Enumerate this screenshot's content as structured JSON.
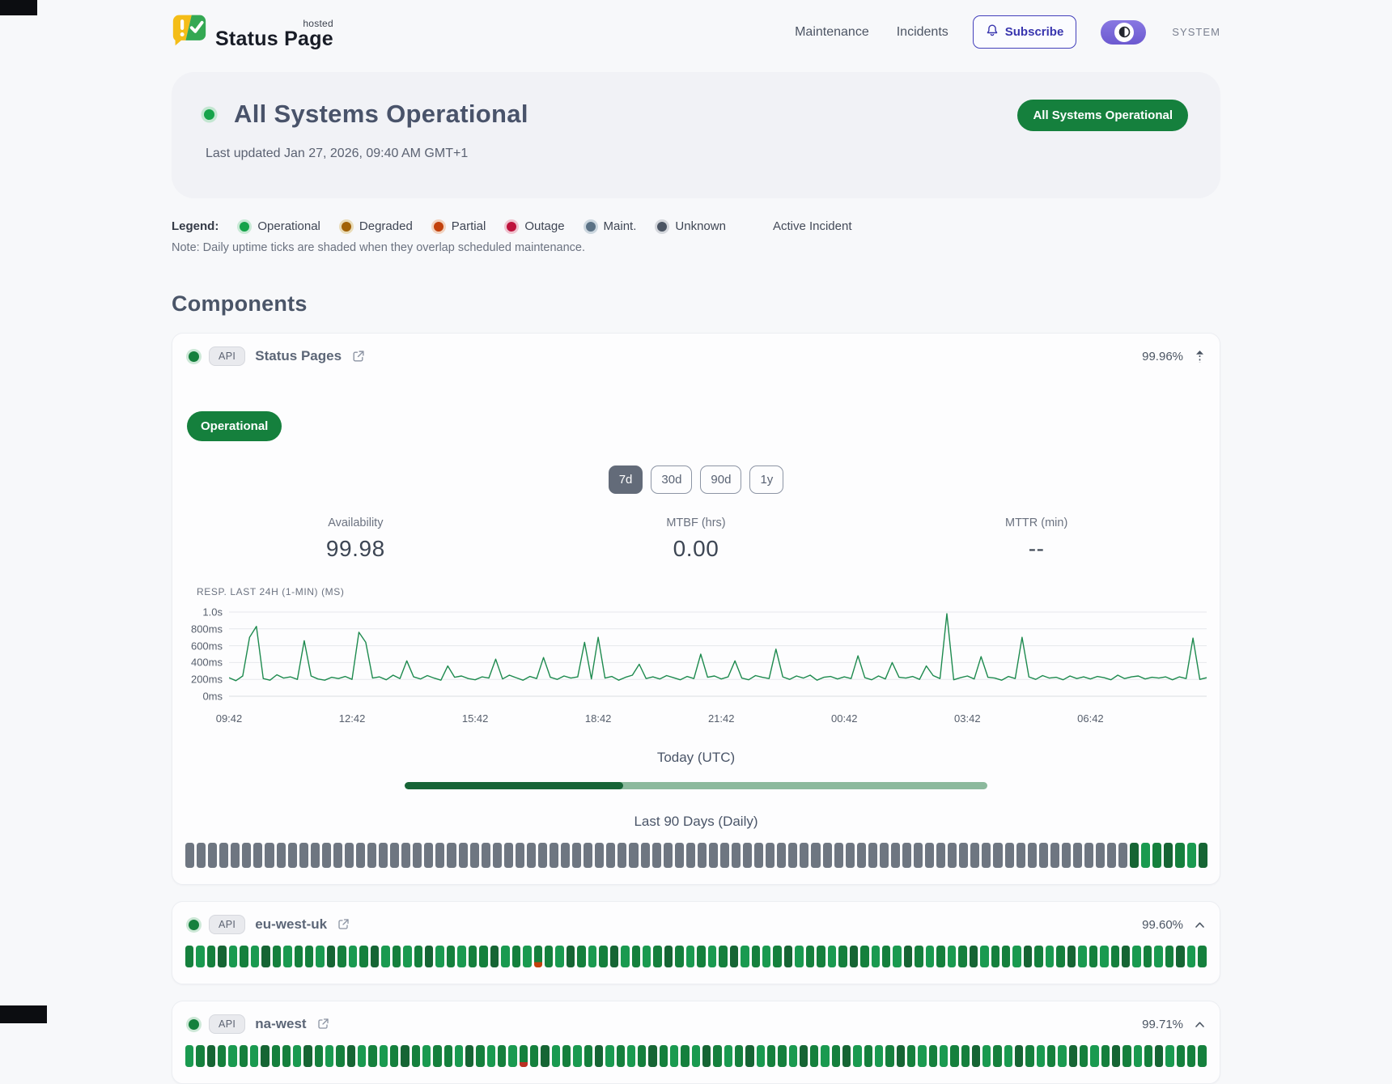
{
  "header": {
    "brand": {
      "status": "Status",
      "page": "Page",
      "hosted": "hosted"
    },
    "nav": [
      "Maintenance",
      "Incidents"
    ],
    "subscribe": "Subscribe",
    "theme_toggle_label": "SYSTEM"
  },
  "hero": {
    "title": "All Systems Operational",
    "last_updated": "Last updated Jan 27, 2026, 09:40 AM GMT+1",
    "badge": "All Systems Operational"
  },
  "legend": {
    "label": "Legend:",
    "items": [
      {
        "label": "Operational",
        "color": "#16a34a",
        "ring": "#c8e9d5"
      },
      {
        "label": "Degraded",
        "color": "#a16207",
        "ring": "#e9dcb9"
      },
      {
        "label": "Partial",
        "color": "#c2410c",
        "ring": "#f1d2bf"
      },
      {
        "label": "Outage",
        "color": "#be123c",
        "ring": "#efc3cf"
      },
      {
        "label": "Maint.",
        "color": "#5b7285",
        "ring": "#ccd7df"
      },
      {
        "label": "Unknown",
        "color": "#4b5563",
        "ring": "#d4d7dc"
      }
    ],
    "active_incident_label": "Active Incident",
    "note": "Note: Daily uptime ticks are shaded when they overlap scheduled maintenance."
  },
  "components": {
    "heading": "Components",
    "tick_colors": {
      "N": "#6e7681",
      "0": "#166534",
      "1": "#15803d",
      "2": "#1a9a50",
      "P": "linear-gradient(#15803d 76%, #c2410c 76%)",
      "O": "linear-gradient(#15803d 78%, #bb3024 78%)"
    },
    "expanded": {
      "tag": "API",
      "name": "Status Pages",
      "uptime": "99.96%",
      "status_badge": "Operational",
      "ranges": [
        "7d",
        "30d",
        "90d",
        "1y"
      ],
      "active_range": "7d",
      "metrics": [
        {
          "label": "Availability",
          "value": "99.98"
        },
        {
          "label": "MTBF (hrs)",
          "value": "0.00"
        },
        {
          "label": "MTTR (min)",
          "value": "--"
        }
      ],
      "today_label": "Today (UTC)",
      "today_progress": 0.375,
      "history_label": "Last 90 Days (Daily)",
      "ticks": "NNNNNNNNNNNNNNNNNNNNNNNNNNNNNNNNNNNNNNNNNNNNNNNNNNNNNNNNNNNNNNNNNNNNNNNNNNNNNNNNNNN0210120"
    },
    "rows": [
      {
        "tag": "API",
        "name": "eu-west-uk",
        "uptime": "99.60%",
        "ticks": "12102120121120121021210212110212P1201210212101212102121021121012120121210211201210212102121021"
      },
      {
        "tag": "API",
        "name": "na-west",
        "uptime": "99.71%",
        "ticks": "2101212011201210212101211201212O102121021210121201210211201210212101212110212012120121012102111"
      }
    ]
  },
  "chart_data": {
    "type": "line",
    "title": "RESP. LAST 24H (1-MIN) (MS)",
    "line_color": "#1d8a4e",
    "ylim": [
      0,
      1000
    ],
    "y_ticks": [
      {
        "label": "1.0s",
        "value": 1000
      },
      {
        "label": "800ms",
        "value": 800
      },
      {
        "label": "600ms",
        "value": 600
      },
      {
        "label": "400ms",
        "value": 400
      },
      {
        "label": "200ms",
        "value": 200
      },
      {
        "label": "0ms",
        "value": 0
      }
    ],
    "x_ticks": [
      {
        "label": "09:42",
        "i": 0
      },
      {
        "label": "12:42",
        "i": 18
      },
      {
        "label": "15:42",
        "i": 36
      },
      {
        "label": "18:42",
        "i": 54
      },
      {
        "label": "21:42",
        "i": 72
      },
      {
        "label": "00:42",
        "i": 90
      },
      {
        "label": "03:42",
        "i": 108
      },
      {
        "label": "06:42",
        "i": 126
      }
    ],
    "values": [
      220,
      185,
      240,
      700,
      830,
      210,
      190,
      255,
      215,
      230,
      200,
      660,
      240,
      205,
      190,
      225,
      210,
      235,
      200,
      760,
      640,
      215,
      230,
      195,
      250,
      210,
      420,
      230,
      205,
      245,
      215,
      190,
      360,
      225,
      240,
      210,
      195,
      230,
      215,
      440,
      205,
      250,
      220,
      190,
      235,
      210,
      460,
      225,
      200,
      240,
      215,
      230,
      640,
      205,
      700,
      215,
      235,
      190,
      225,
      250,
      380,
      210,
      230,
      205,
      245,
      220,
      195,
      235,
      210,
      500,
      225,
      240,
      205,
      230,
      420,
      215,
      195,
      245,
      225,
      210,
      560,
      230,
      200,
      240,
      215,
      250,
      190,
      225,
      235,
      205,
      230,
      210,
      480,
      220,
      195,
      240,
      205,
      400,
      225,
      215,
      235,
      200,
      360,
      245,
      210,
      980,
      195,
      220,
      240,
      205,
      470,
      225,
      215,
      190,
      235,
      210,
      700,
      230,
      200,
      245,
      215,
      225,
      195,
      240,
      210,
      230,
      205,
      235,
      220,
      195,
      250,
      210,
      230,
      240,
      205,
      225,
      215,
      230,
      195,
      230,
      210,
      690,
      200,
      220
    ]
  }
}
